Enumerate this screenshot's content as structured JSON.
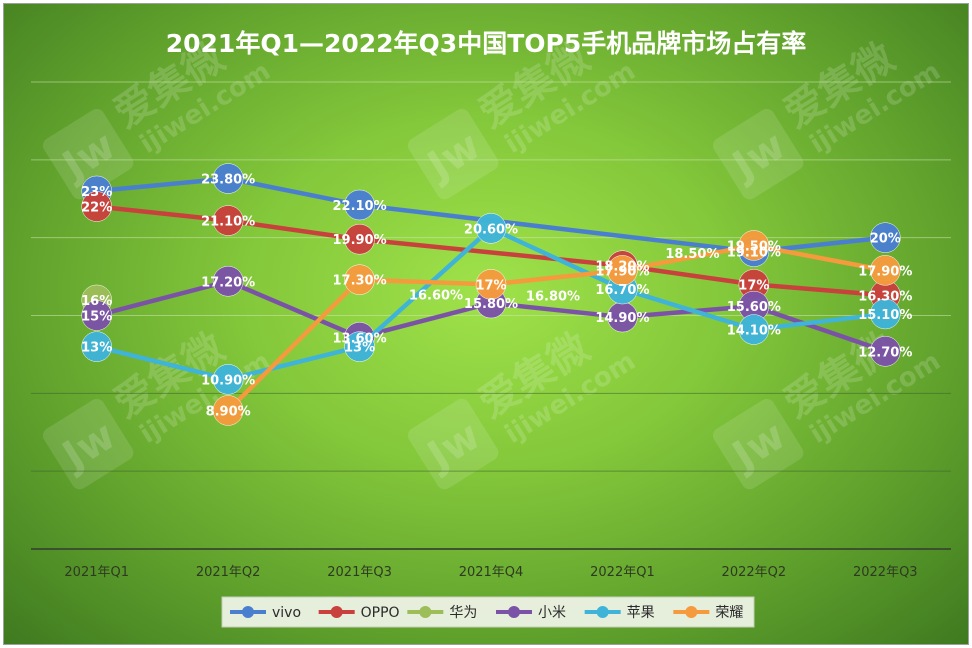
{
  "colors": {
    "vivo": "#4a7fd0",
    "OPPO": "#c8413c",
    "华为": "#9dbd58",
    "小米": "#7b53a6",
    "苹果": "#3fb4d8",
    "荣耀": "#f59b3d"
  },
  "chart_data": {
    "type": "line",
    "title": "2021年Q1—2022年Q3中国TOP5手机品牌市场占有率",
    "categories": [
      "2021年Q1",
      "2021年Q2",
      "2021年Q3",
      "2021年Q4",
      "2022年Q1",
      "2022年Q2",
      "2022年Q3"
    ],
    "ylim": [
      0,
      30
    ],
    "grid": true,
    "legend": "bottom",
    "series": [
      {
        "name": "vivo",
        "values": [
          23,
          23.8,
          22.1,
          null,
          null,
          19.1,
          20
        ],
        "labels": [
          "23%",
          "23.80%",
          "22.10%",
          null,
          null,
          "19.10%",
          "20%"
        ]
      },
      {
        "name": "OPPO",
        "values": [
          22,
          21.1,
          19.9,
          null,
          18.2,
          17,
          16.3
        ],
        "labels": [
          "22%",
          "21.10%",
          "19.90%",
          null,
          "18.20%",
          "17%",
          "16.30%"
        ]
      },
      {
        "name": "华为",
        "values": [
          16,
          null,
          null,
          null,
          null,
          null,
          null
        ],
        "labels": [
          "16%",
          null,
          null,
          null,
          null,
          null,
          null
        ]
      },
      {
        "name": "小米",
        "values": [
          15,
          17.2,
          13.6,
          15.8,
          14.9,
          15.6,
          12.7
        ],
        "labels": [
          "15%",
          "17.20%",
          "13.60%",
          "15.80%",
          "14.90%",
          "15.60%",
          "12.70%"
        ]
      },
      {
        "name": "苹果",
        "values": [
          13,
          10.9,
          13,
          20.6,
          16.7,
          14.1,
          15.1
        ],
        "labels": [
          "13%",
          "10.90%",
          "13%",
          "20.60%",
          "16.70%",
          "14.10%",
          "15.10%"
        ]
      },
      {
        "name": "荣耀",
        "values": [
          null,
          8.9,
          17.3,
          17,
          17.9,
          19.5,
          17.9
        ],
        "labels": [
          null,
          "8.90%",
          "17.30%",
          "17%",
          "17.90%",
          "19.50%",
          "17.90%"
        ]
      }
    ],
    "unlabeled_points": [
      {
        "series": "OPPO",
        "x": "2021年Q4",
        "value": 16.6,
        "label": "16.60%"
      },
      {
        "series": "vivo",
        "x": "2021年Q4",
        "value": 16.8,
        "label": "16.80%"
      },
      {
        "series": "vivo",
        "x": "2022年Q1",
        "value": 18.5,
        "label": "18.50%"
      }
    ]
  },
  "watermark": {
    "brand": "爱集微",
    "url": "ijiwei.com",
    "logo": "Jw"
  }
}
